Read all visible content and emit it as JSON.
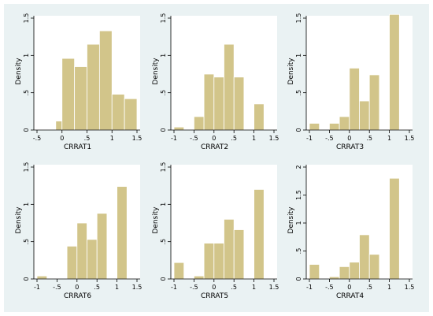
{
  "figure": {
    "outer_background": "#eaf2f3",
    "plot_background": "#ffffff",
    "bar_fill": "#d2c58a",
    "bar_stroke": "#ffffff",
    "axis_color": "#000000"
  },
  "chart_data": [
    {
      "type": "bar",
      "subtype": "histogram",
      "xlabel": "CRRAT1",
      "ylabel": "Density",
      "xlim": [
        -0.5,
        1.5
      ],
      "ylim": [
        0,
        1.5
      ],
      "x_ticks": [
        -0.5,
        0,
        0.5,
        1,
        1.5
      ],
      "x_tick_labels": [
        "-.5",
        "0",
        ".5",
        "1",
        "1.5"
      ],
      "y_ticks": [
        0,
        0.5,
        1,
        1.5
      ],
      "y_tick_labels": [
        "0",
        ".5",
        "1",
        "1.5"
      ],
      "bins": [
        {
          "x0": -0.125,
          "x1": 0.0,
          "density": 0.12
        },
        {
          "x0": 0.0,
          "x1": 0.25,
          "density": 0.96
        },
        {
          "x0": 0.25,
          "x1": 0.5,
          "density": 0.85
        },
        {
          "x0": 0.5,
          "x1": 0.75,
          "density": 1.15
        },
        {
          "x0": 0.75,
          "x1": 1.0,
          "density": 1.33
        },
        {
          "x0": 1.0,
          "x1": 1.25,
          "density": 0.48
        },
        {
          "x0": 1.25,
          "x1": 1.5,
          "density": 0.42
        }
      ]
    },
    {
      "type": "bar",
      "subtype": "histogram",
      "xlabel": "CRRAT2",
      "ylabel": "Density",
      "xlim": [
        -1,
        1.5
      ],
      "ylim": [
        0,
        1.5
      ],
      "x_ticks": [
        -1,
        -0.5,
        0,
        0.5,
        1,
        1.5
      ],
      "x_tick_labels": [
        "-1",
        "-.5",
        "0",
        ".5",
        "1",
        "1.5"
      ],
      "y_ticks": [
        0,
        0.5,
        1,
        1.5
      ],
      "y_tick_labels": [
        "0",
        ".5",
        "1",
        "1.5"
      ],
      "bins": [
        {
          "x0": -1.0,
          "x1": -0.75,
          "density": 0.04
        },
        {
          "x0": -0.5,
          "x1": -0.25,
          "density": 0.18
        },
        {
          "x0": -0.25,
          "x1": 0.0,
          "density": 0.75
        },
        {
          "x0": 0.0,
          "x1": 0.25,
          "density": 0.71
        },
        {
          "x0": 0.25,
          "x1": 0.5,
          "density": 1.15
        },
        {
          "x0": 0.5,
          "x1": 0.75,
          "density": 0.71
        },
        {
          "x0": 1.0,
          "x1": 1.25,
          "density": 0.35
        }
      ]
    },
    {
      "type": "bar",
      "subtype": "histogram",
      "xlabel": "CRRAT3",
      "ylabel": "Density",
      "xlim": [
        -1,
        1.5
      ],
      "ylim": [
        0,
        1.5
      ],
      "x_ticks": [
        -1,
        -0.5,
        0,
        0.5,
        1,
        1.5
      ],
      "x_tick_labels": [
        "-1",
        "-.5",
        "0",
        ".5",
        "1",
        "1.5"
      ],
      "y_ticks": [
        0,
        0.5,
        1,
        1.5
      ],
      "y_tick_labels": [
        "0",
        ".5",
        "1",
        "1.5"
      ],
      "bins": [
        {
          "x0": -1.0,
          "x1": -0.75,
          "density": 0.09
        },
        {
          "x0": -0.5,
          "x1": -0.25,
          "density": 0.09
        },
        {
          "x0": -0.25,
          "x1": 0.0,
          "density": 0.18
        },
        {
          "x0": 0.0,
          "x1": 0.25,
          "density": 0.83
        },
        {
          "x0": 0.25,
          "x1": 0.5,
          "density": 0.39
        },
        {
          "x0": 0.5,
          "x1": 0.75,
          "density": 0.74
        },
        {
          "x0": 1.0,
          "x1": 1.25,
          "density": 1.55
        }
      ]
    },
    {
      "type": "bar",
      "subtype": "histogram",
      "xlabel": "CRRAT6",
      "ylabel": "Density",
      "xlim": [
        -1,
        1.5
      ],
      "ylim": [
        0,
        1.5
      ],
      "x_ticks": [
        -1,
        -0.5,
        0,
        0.5,
        1,
        1.5
      ],
      "x_tick_labels": [
        "-1",
        "-.5",
        "0",
        ".5",
        "1",
        "1.5"
      ],
      "y_ticks": [
        0,
        0.5,
        1,
        1.5
      ],
      "y_tick_labels": [
        "0",
        ".5",
        "1",
        "1.5"
      ],
      "bins": [
        {
          "x0": -1.0,
          "x1": -0.75,
          "density": 0.04
        },
        {
          "x0": -0.25,
          "x1": 0.0,
          "density": 0.44
        },
        {
          "x0": 0.0,
          "x1": 0.25,
          "density": 0.75
        },
        {
          "x0": 0.25,
          "x1": 0.5,
          "density": 0.53
        },
        {
          "x0": 0.5,
          "x1": 0.75,
          "density": 0.88
        },
        {
          "x0": 1.0,
          "x1": 1.25,
          "density": 1.24
        }
      ]
    },
    {
      "type": "bar",
      "subtype": "histogram",
      "xlabel": "CRRAT5",
      "ylabel": "Density",
      "xlim": [
        -1,
        1.5
      ],
      "ylim": [
        0,
        1.5
      ],
      "x_ticks": [
        -1,
        -0.5,
        0,
        0.5,
        1,
        1.5
      ],
      "x_tick_labels": [
        "-1",
        "-.5",
        "0",
        ".5",
        "1",
        "1.5"
      ],
      "y_ticks": [
        0,
        0.5,
        1,
        1.5
      ],
      "y_tick_labels": [
        "0",
        ".5",
        "1",
        "1.5"
      ],
      "bins": [
        {
          "x0": -1.0,
          "x1": -0.75,
          "density": 0.22
        },
        {
          "x0": -0.5,
          "x1": -0.25,
          "density": 0.04
        },
        {
          "x0": -0.25,
          "x1": 0.0,
          "density": 0.48
        },
        {
          "x0": 0.0,
          "x1": 0.25,
          "density": 0.48
        },
        {
          "x0": 0.25,
          "x1": 0.5,
          "density": 0.8
        },
        {
          "x0": 0.5,
          "x1": 0.75,
          "density": 0.66
        },
        {
          "x0": 1.0,
          "x1": 1.25,
          "density": 1.2
        }
      ]
    },
    {
      "type": "bar",
      "subtype": "histogram",
      "xlabel": "CRRAT4",
      "ylabel": "Density",
      "xlim": [
        -1,
        1.5
      ],
      "ylim": [
        0,
        2
      ],
      "x_ticks": [
        -1,
        -0.5,
        0,
        0.5,
        1,
        1.5
      ],
      "x_tick_labels": [
        "-1",
        "-.5",
        "0",
        ".5",
        "1",
        "1.5"
      ],
      "y_ticks": [
        0,
        0.5,
        1,
        1.5,
        2
      ],
      "y_tick_labels": [
        "0",
        ".5",
        "1",
        "1.5",
        "2"
      ],
      "bins": [
        {
          "x0": -1.0,
          "x1": -0.75,
          "density": 0.26
        },
        {
          "x0": -0.5,
          "x1": -0.25,
          "density": 0.04
        },
        {
          "x0": -0.25,
          "x1": 0.0,
          "density": 0.22
        },
        {
          "x0": 0.0,
          "x1": 0.25,
          "density": 0.3
        },
        {
          "x0": 0.25,
          "x1": 0.5,
          "density": 0.79
        },
        {
          "x0": 0.5,
          "x1": 0.75,
          "density": 0.44
        },
        {
          "x0": 1.0,
          "x1": 1.25,
          "density": 1.8
        }
      ]
    }
  ]
}
